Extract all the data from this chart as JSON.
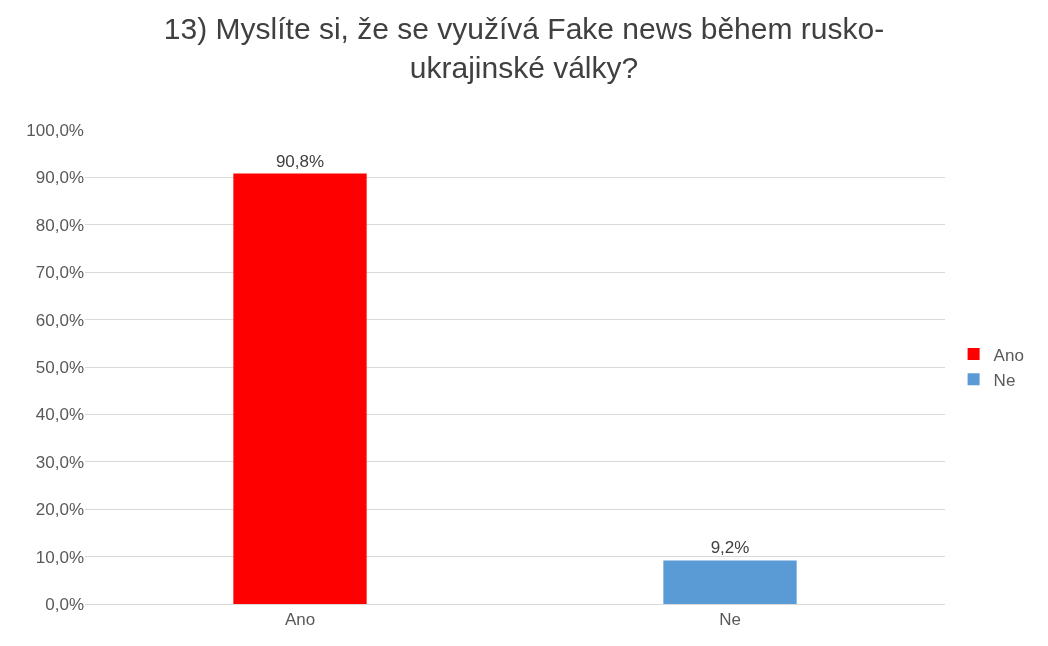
{
  "chart_data": {
    "type": "bar",
    "title": "13) Myslíte si, že se využívá Fake news během rusko-ukrajinské války?",
    "categories": [
      "Ano",
      "Ne"
    ],
    "series": [
      {
        "name": "Ano",
        "color": "#ff0000",
        "values": [
          90.8,
          null
        ],
        "value_labels": [
          "90,8%",
          null
        ]
      },
      {
        "name": "Ne",
        "color": "#5b9bd5",
        "values": [
          null,
          9.2
        ],
        "value_labels": [
          null,
          "9,2%"
        ]
      }
    ],
    "ylim": [
      0,
      100
    ],
    "yticks": [
      {
        "value": 0,
        "label": "0,0%"
      },
      {
        "value": 10,
        "label": "10,0%"
      },
      {
        "value": 20,
        "label": "20,0%"
      },
      {
        "value": 30,
        "label": "30,0%"
      },
      {
        "value": 40,
        "label": "40,0%"
      },
      {
        "value": 50,
        "label": "50,0%"
      },
      {
        "value": 60,
        "label": "60,0%"
      },
      {
        "value": 70,
        "label": "70,0%"
      },
      {
        "value": 80,
        "label": "80,0%"
      },
      {
        "value": 90,
        "label": "90,0%"
      },
      {
        "value": 100,
        "label": "100,0%"
      }
    ],
    "grid": "y",
    "legend": "right"
  }
}
